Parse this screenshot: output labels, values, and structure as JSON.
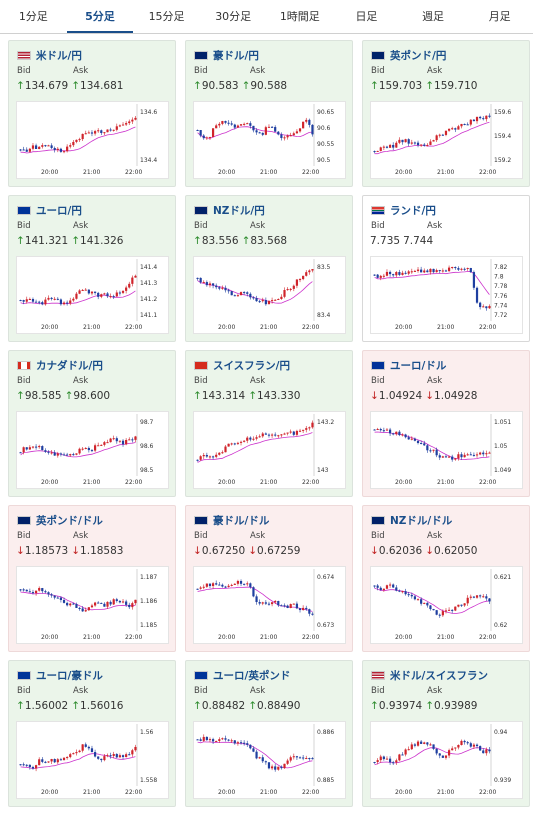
{
  "tabs": [
    {
      "label": "1分足",
      "active": false
    },
    {
      "label": "5分足",
      "active": true
    },
    {
      "label": "15分足",
      "active": false
    },
    {
      "label": "30分足",
      "active": false
    },
    {
      "label": "1時間足",
      "active": false
    },
    {
      "label": "日足",
      "active": false
    },
    {
      "label": "週足",
      "active": false
    },
    {
      "label": "月足",
      "active": false
    }
  ],
  "labels": {
    "bid": "Bid",
    "ask": "Ask"
  },
  "colors": {
    "up_candle": "#d0242b",
    "down_candle": "#1f3fa0",
    "ma": "#cc33cc",
    "ma2": "#66aacc",
    "up_bg": "#ebf5ea",
    "down_bg": "#fbeeee"
  },
  "cards": [
    {
      "pair": "米ドル/円",
      "flag": "us-jp",
      "dir": "up",
      "bid": "134.679",
      "ask": "134.681",
      "bid_arrow": "↑",
      "ask_arrow": "↑",
      "x_ticks": [
        "20:00",
        "21:00",
        "22:00"
      ],
      "y_ticks": [
        "134.6",
        "134.4"
      ]
    },
    {
      "pair": "豪ドル/円",
      "flag": "au-jp",
      "dir": "up",
      "bid": "90.583",
      "ask": "90.588",
      "bid_arrow": "↑",
      "ask_arrow": "↑",
      "x_ticks": [
        "20:00",
        "21:00",
        "22:00"
      ],
      "y_ticks": [
        "90.65",
        "90.6",
        "90.55",
        "90.5"
      ]
    },
    {
      "pair": "英ポンド/円",
      "flag": "gb-jp",
      "dir": "up",
      "bid": "159.703",
      "ask": "159.710",
      "bid_arrow": "↑",
      "ask_arrow": "↑",
      "x_ticks": [
        "20:00",
        "21:00",
        "22:00"
      ],
      "y_ticks": [
        "159.6",
        "159.4",
        "159.2"
      ]
    },
    {
      "pair": "ユーロ/円",
      "flag": "eu-jp",
      "dir": "up",
      "bid": "141.321",
      "ask": "141.326",
      "bid_arrow": "↑",
      "ask_arrow": "↑",
      "x_ticks": [
        "20:00",
        "21:00",
        "22:00"
      ],
      "y_ticks": [
        "141.4",
        "141.3",
        "141.2",
        "141.1"
      ]
    },
    {
      "pair": "NZドル/円",
      "flag": "nz-jp",
      "dir": "up",
      "bid": "83.556",
      "ask": "83.568",
      "bid_arrow": "↑",
      "ask_arrow": "↑",
      "x_ticks": [
        "20:00",
        "21:00",
        "22:00"
      ],
      "y_ticks": [
        "83.5",
        "83.4"
      ]
    },
    {
      "pair": "ランド/円",
      "flag": "za-jp",
      "dir": "neutral",
      "bid": "7.735",
      "ask": "7.744",
      "bid_arrow": "",
      "ask_arrow": "",
      "x_ticks": [
        "20:00",
        "21:00",
        "22:00"
      ],
      "y_ticks": [
        "7.82",
        "7.8",
        "7.78",
        "7.76",
        "7.74",
        "7.72"
      ]
    },
    {
      "pair": "カナダドル/円",
      "flag": "ca-jp",
      "dir": "up",
      "bid": "98.585",
      "ask": "98.600",
      "bid_arrow": "↑",
      "ask_arrow": "↑",
      "x_ticks": [
        "20:00",
        "21:00",
        "22:00"
      ],
      "y_ticks": [
        "98.7",
        "98.6",
        "98.5"
      ]
    },
    {
      "pair": "スイスフラン/円",
      "flag": "ch-jp",
      "dir": "up",
      "bid": "143.314",
      "ask": "143.330",
      "bid_arrow": "↑",
      "ask_arrow": "↑",
      "x_ticks": [
        "20:00",
        "21:00",
        "22:00"
      ],
      "y_ticks": [
        "143.2",
        "143"
      ]
    },
    {
      "pair": "ユーロ/ドル",
      "flag": "eu-us",
      "dir": "down",
      "bid": "1.04924",
      "ask": "1.04928",
      "bid_arrow": "↓",
      "ask_arrow": "↓",
      "x_ticks": [
        "20:00",
        "21:00",
        "22:00"
      ],
      "y_ticks": [
        "1.051",
        "1.05",
        "1.049"
      ]
    },
    {
      "pair": "英ポンド/ドル",
      "flag": "gb-us",
      "dir": "down",
      "bid": "1.18573",
      "ask": "1.18583",
      "bid_arrow": "↓",
      "ask_arrow": "↓",
      "x_ticks": [
        "20:00",
        "21:00",
        "22:00"
      ],
      "y_ticks": [
        "1.187",
        "1.186",
        "1.185"
      ]
    },
    {
      "pair": "豪ドル/ドル",
      "flag": "au-us",
      "dir": "down",
      "bid": "0.67250",
      "ask": "0.67259",
      "bid_arrow": "↓",
      "ask_arrow": "↓",
      "x_ticks": [
        "20:00",
        "21:00",
        "22:00"
      ],
      "y_ticks": [
        "0.674",
        "0.673"
      ]
    },
    {
      "pair": "NZドル/ドル",
      "flag": "nz-us",
      "dir": "down",
      "bid": "0.62036",
      "ask": "0.62050",
      "bid_arrow": "↓",
      "ask_arrow": "↓",
      "x_ticks": [
        "20:00",
        "21:00",
        "22:00"
      ],
      "y_ticks": [
        "0.621",
        "0.62"
      ]
    },
    {
      "pair": "ユーロ/豪ドル",
      "flag": "eu-au",
      "dir": "up",
      "bid": "1.56002",
      "ask": "1.56016",
      "bid_arrow": "↑",
      "ask_arrow": "↑",
      "x_ticks": [
        "20:00",
        "21:00",
        "22:00"
      ],
      "y_ticks": [
        "1.56",
        "1.558"
      ]
    },
    {
      "pair": "ユーロ/英ポンド",
      "flag": "eu-gb",
      "dir": "up",
      "bid": "0.88482",
      "ask": "0.88490",
      "bid_arrow": "↑",
      "ask_arrow": "↑",
      "x_ticks": [
        "20:00",
        "21:00",
        "22:00"
      ],
      "y_ticks": [
        "0.886",
        "0.885"
      ]
    },
    {
      "pair": "米ドル/スイスフラン",
      "flag": "us-ch",
      "dir": "up",
      "bid": "0.93974",
      "ask": "0.93989",
      "bid_arrow": "↑",
      "ask_arrow": "↑",
      "x_ticks": [
        "20:00",
        "21:00",
        "22:00"
      ],
      "y_ticks": [
        "0.94",
        "0.939"
      ]
    }
  ]
}
